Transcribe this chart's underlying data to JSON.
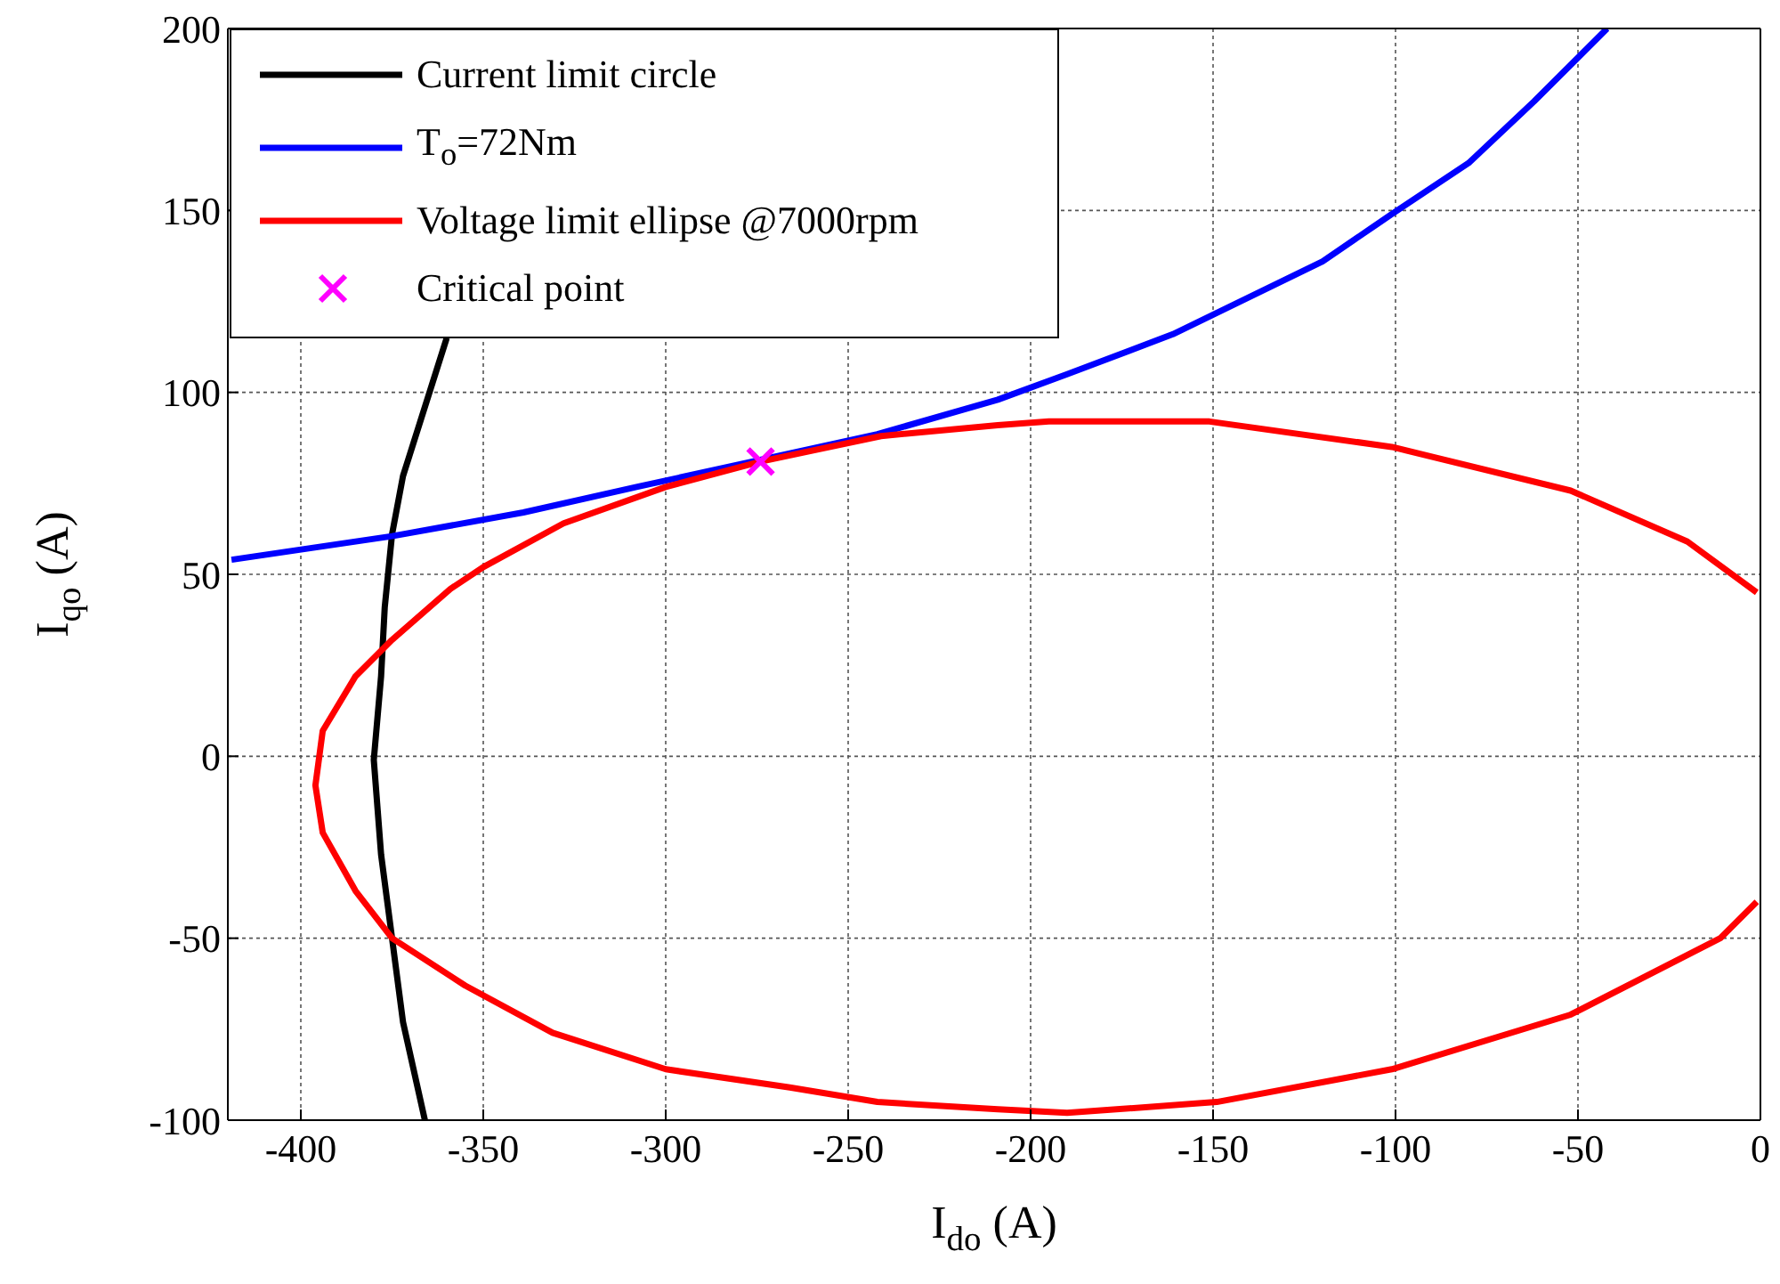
{
  "chart_data": {
    "type": "line",
    "xlabel": "I$_{do}$ (A)",
    "ylabel": "I$_{qo}$ (A)",
    "xlim": [
      -420,
      0
    ],
    "xticks": [
      -400,
      -350,
      -300,
      -250,
      -200,
      -150,
      -100,
      -50,
      0
    ],
    "ylim": [
      -100,
      200
    ],
    "yticks": [
      -100,
      -50,
      0,
      50,
      100,
      150,
      200
    ],
    "grid": true,
    "legend": "top left",
    "line_style": "solid",
    "marker": "none",
    "series": [
      {
        "name": "Current limit circle",
        "color": "#000000",
        "x": [
          -366,
          -372,
          -375,
          -378,
          -380,
          -378,
          -377,
          -375,
          -372,
          -360
        ],
        "values": [
          -100,
          -73,
          -50,
          -27,
          -1,
          22,
          41,
          61,
          77,
          115
        ]
      },
      {
        "name": "T$_{o}$=72Nm",
        "color": "#0000ff",
        "x": [
          -419,
          -375,
          -339,
          -308,
          -242,
          -209,
          -190,
          -161,
          -120,
          -101,
          -80,
          -62,
          -42
        ],
        "values": [
          54,
          60.5,
          67,
          74,
          88.5,
          98,
          105,
          116,
          136,
          149,
          163,
          180,
          200
        ]
      },
      {
        "name": "Voltage limit ellipse @7000rpm",
        "color": "#ff0000",
        "x": [
          -1,
          -20,
          -52,
          -101,
          -151,
          -195,
          -209,
          -241,
          -274,
          -300,
          -328,
          -350,
          -359,
          -375,
          -385,
          -394,
          -396,
          -394,
          -385,
          -375,
          -355,
          -331,
          -300,
          -266,
          -242,
          -209,
          -190,
          -149,
          -101,
          -52,
          -11,
          -1
        ],
        "values": [
          45,
          59,
          73,
          85,
          92,
          92,
          91,
          88,
          81,
          74,
          64,
          52,
          46,
          32,
          22,
          7,
          -8,
          -21,
          -37,
          -50,
          -63,
          -76,
          -86,
          -91,
          -95,
          -97,
          -98,
          -95,
          -86,
          -71,
          -50,
          -40
        ]
      },
      {
        "name": "Critical point",
        "type": "scatter",
        "marker": "cross",
        "color": "#ff00ff",
        "x": [
          -274
        ],
        "values": [
          81
        ]
      }
    ]
  }
}
